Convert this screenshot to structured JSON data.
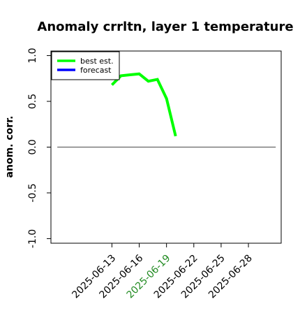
{
  "chart_data": {
    "type": "line",
    "title": "Anomaly crrltn, layer 1 temperature",
    "xlabel": "",
    "ylabel": "anom. corr.",
    "ylim": [
      -1.05,
      1.05
    ],
    "yticks": [
      -1.0,
      -0.5,
      0.0,
      0.5,
      1.0
    ],
    "ytick_labels": [
      "-1.0",
      "-0.5",
      "0.0",
      "0.5",
      "1.0"
    ],
    "x_range_days": [
      6.3,
      31.6
    ],
    "xticks": [
      {
        "day": 13,
        "label": "2025-06-13",
        "color": "#000000"
      },
      {
        "day": 16,
        "label": "2025-06-16",
        "color": "#000000"
      },
      {
        "day": 19,
        "label": "2025-06-19",
        "color": "#228b22"
      },
      {
        "day": 22,
        "label": "2025-06-22",
        "color": "#000000"
      },
      {
        "day": 25,
        "label": "2025-06-25",
        "color": "#000000"
      },
      {
        "day": 28,
        "label": "2025-06-28",
        "color": "#000000"
      }
    ],
    "reference_line": {
      "y": 0.0,
      "x_start": 7.0,
      "x_end": 31.0,
      "color": "#666666"
    },
    "legend": {
      "position": "top-left"
    },
    "series": [
      {
        "name": "best est.",
        "color": "#00ff00",
        "points": [
          {
            "x": 13.0,
            "y": 0.68
          },
          {
            "x": 14.0,
            "y": 0.78
          },
          {
            "x": 15.0,
            "y": 0.79
          },
          {
            "x": 16.0,
            "y": 0.8
          },
          {
            "x": 17.0,
            "y": 0.72
          },
          {
            "x": 18.0,
            "y": 0.74
          },
          {
            "x": 19.0,
            "y": 0.53
          },
          {
            "x": 20.0,
            "y": 0.12
          }
        ]
      },
      {
        "name": "forecast",
        "color": "#0000ff",
        "points": []
      }
    ]
  }
}
